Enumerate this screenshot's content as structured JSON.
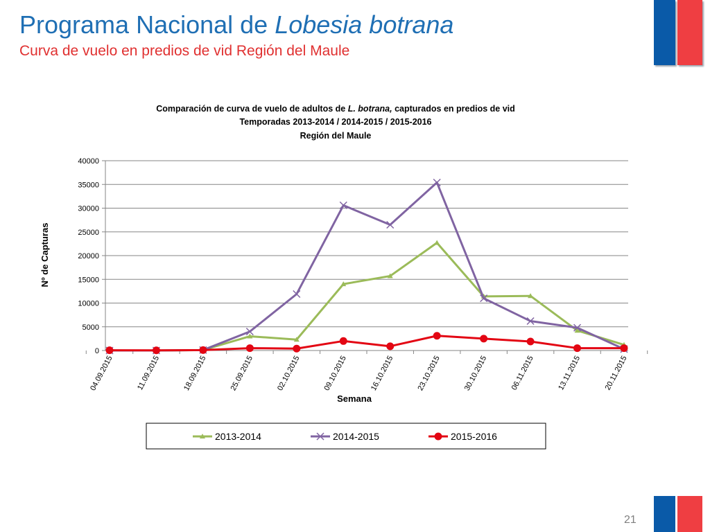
{
  "slide": {
    "title_prefix": "Programa Nacional de ",
    "title_italic": "Lobesia botrana",
    "subtitle": "Curva de vuelo en predios de vid Región del Maule",
    "page_number": "21"
  },
  "colors": {
    "title": "#1F6FB4",
    "subtitle": "#E03030",
    "flag_blue": "#0A5AA8",
    "flag_red": "#EF3E42"
  },
  "chart_data": {
    "type": "line",
    "title_line1_prefix": "Comparación de curva de vuelo de adultos de ",
    "title_line1_italic": "L. botrana,",
    "title_line1_suffix": " capturados en predios de vid",
    "title_line2": "Temporadas 2013-2014 / 2014-2015 / 2015-2016",
    "title_line3": "Región del Maule",
    "xlabel": "Semana",
    "ylabel": "Nº de Capturas",
    "ylim": [
      0,
      40000
    ],
    "yticks": [
      0,
      5000,
      10000,
      15000,
      20000,
      25000,
      30000,
      35000,
      40000
    ],
    "grid": "horizontal",
    "legend_position": "bottom",
    "categories": [
      "04.09.2015",
      "11.09.2015",
      "18.09.2015",
      "25.09.2015",
      "02.10.2015",
      "09.10.2015",
      "16.10.2015",
      "23.10.2015",
      "30.10.2015",
      "06.11.2015",
      "13.11.2015",
      "20.11.2015"
    ],
    "series": [
      {
        "name": "2013-2014",
        "color": "#9BBB59",
        "marker": "triangle",
        "values": [
          0,
          0,
          100,
          3000,
          2300,
          14000,
          15700,
          22700,
          11400,
          11500,
          4200,
          1200
        ]
      },
      {
        "name": "2014-2015",
        "color": "#8064A2",
        "marker": "x",
        "values": [
          0,
          0,
          100,
          4000,
          11900,
          30600,
          26500,
          35400,
          11000,
          6200,
          4800,
          300
        ]
      },
      {
        "name": "2015-2016",
        "color": "#E30613",
        "marker": "circle",
        "values": [
          50,
          30,
          100,
          500,
          400,
          2000,
          900,
          3100,
          2500,
          1900,
          500,
          500
        ]
      }
    ]
  }
}
